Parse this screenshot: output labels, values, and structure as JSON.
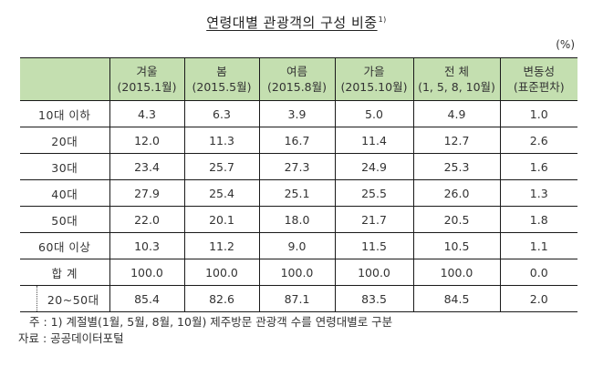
{
  "title": {
    "text": "연령대별 관광객의 구성 비중",
    "footnote_marker": "1)"
  },
  "unit": "(%)",
  "table": {
    "header": [
      {
        "line1": "",
        "line2": ""
      },
      {
        "line1": "겨울",
        "line2": "(2015.1월)"
      },
      {
        "line1": "봄",
        "line2": "(2015.5월)"
      },
      {
        "line1": "여름",
        "line2": "(2015.8월)"
      },
      {
        "line1": "가을",
        "line2": "(2015.10월)"
      },
      {
        "line1": "전 체",
        "line2": "(1, 5, 8, 10월)"
      },
      {
        "line1": "변동성",
        "line2": "(표준편차)"
      }
    ],
    "rows": [
      {
        "label": "10대 이하",
        "values": [
          "4.3",
          "6.3",
          "3.9",
          "5.0",
          "4.9",
          "1.0"
        ]
      },
      {
        "label": "20대",
        "values": [
          "12.0",
          "11.3",
          "16.7",
          "11.4",
          "12.7",
          "2.6"
        ]
      },
      {
        "label": "30대",
        "values": [
          "23.4",
          "25.7",
          "27.3",
          "24.9",
          "25.3",
          "1.6"
        ]
      },
      {
        "label": "40대",
        "values": [
          "27.9",
          "25.4",
          "25.1",
          "25.5",
          "26.0",
          "1.3"
        ]
      },
      {
        "label": "50대",
        "values": [
          "22.0",
          "20.1",
          "18.0",
          "21.7",
          "20.5",
          "1.8"
        ]
      },
      {
        "label": "60대 이상",
        "values": [
          "10.3",
          "11.2",
          "9.0",
          "11.5",
          "10.5",
          "1.1"
        ]
      },
      {
        "label": "합 계",
        "values": [
          "100.0",
          "100.0",
          "100.0",
          "100.0",
          "100.0",
          "0.0"
        ]
      },
      {
        "label": "20~50대",
        "values": [
          "85.4",
          "82.6",
          "87.1",
          "83.5",
          "84.5",
          "2.0"
        ]
      }
    ]
  },
  "footnotes": {
    "note": "주 : 1) 계절별(1월, 5월, 8월, 10월) 제주방문 관광객 수를 연령대별로 구분",
    "source": "자료 : 공공데이터포털"
  },
  "colors": {
    "header_bg": "#c4dfb0",
    "border": "#1a1a1a",
    "text": "#333333"
  }
}
